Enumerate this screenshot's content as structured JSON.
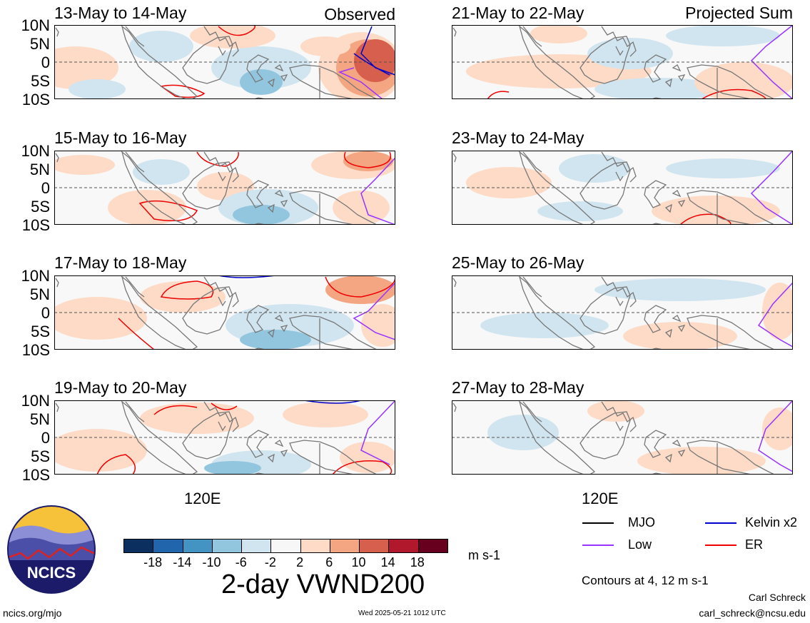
{
  "panels_left": [
    {
      "title": "13-May to 14-May",
      "corner": "Observed"
    },
    {
      "title": "15-May to 16-May",
      "corner": ""
    },
    {
      "title": "17-May to 18-May",
      "corner": ""
    },
    {
      "title": "19-May to 20-May",
      "corner": ""
    }
  ],
  "panels_right": [
    {
      "title": "21-May to 22-May",
      "corner": "Projected Sum"
    },
    {
      "title": "23-May to 24-May",
      "corner": ""
    },
    {
      "title": "25-May to 26-May",
      "corner": ""
    },
    {
      "title": "27-May to 28-May",
      "corner": ""
    }
  ],
  "lat_labels": [
    "10N",
    "5N",
    "0",
    "5S",
    "10S"
  ],
  "lon_label": "120E",
  "colorbar": {
    "ticks": [
      "-18",
      "-14",
      "-10",
      "-6",
      "-2",
      "2",
      "6",
      "10",
      "14",
      "18"
    ],
    "colors": [
      "#0b2f5e",
      "#2166ac",
      "#4393c3",
      "#92c5de",
      "#d1e5f0",
      "#f7f7f7",
      "#fddbc7",
      "#f4a582",
      "#d6604d",
      "#b2182b",
      "#67001f"
    ],
    "units": "m s-1"
  },
  "main_title": "2-day VWND200",
  "legend": [
    {
      "label": "MJO",
      "color": "#000000"
    },
    {
      "label": "Kelvin x2",
      "color": "#0000cc"
    },
    {
      "label": "Low",
      "color": "#9933ff"
    },
    {
      "label": "ER",
      "color": "#ee0000"
    }
  ],
  "contours_note": "Contours at 4, 12 m s-1",
  "logo_text": "NCICS",
  "footer": {
    "url": "ncics.org/mjo",
    "timestamp": "Wed 2025-05-21 1012 UTC",
    "author": "Carl Schreck",
    "email": "carl_schreck@ncsu.edu"
  }
}
